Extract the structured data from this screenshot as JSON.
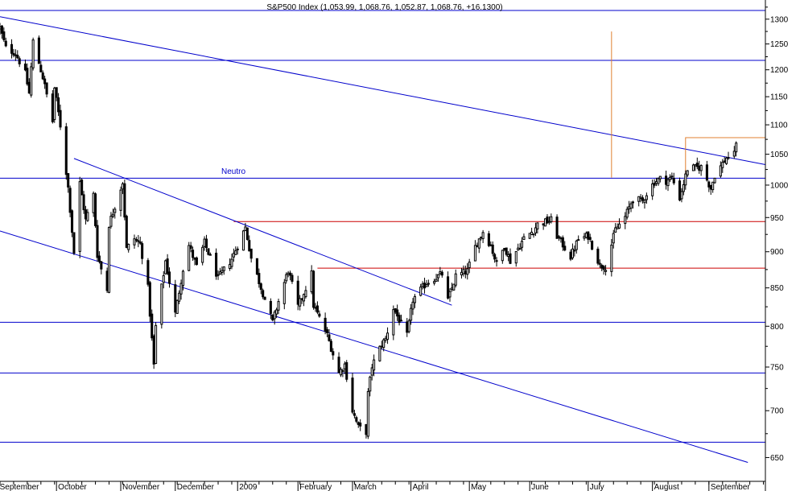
{
  "chart_data": {
    "type": "candlestick",
    "title": "S&P500 Index (1,053.99, 1,068.76, 1,052.87, 1,068.76, +16.1300)",
    "annotation": "Neutro",
    "y_scale": "log",
    "ylim": [
      626,
      1340
    ],
    "y_ticks": [
      650,
      700,
      750,
      800,
      850,
      900,
      950,
      1000,
      1050,
      1100,
      1150,
      1200,
      1250,
      1300
    ],
    "x_range": [
      "2008-09-02",
      "2009-09-30"
    ],
    "x_labels": [
      {
        "date": "2008-09-01",
        "label": "September"
      },
      {
        "date": "2008-10-01",
        "label": "October"
      },
      {
        "date": "2008-11-03",
        "label": "November"
      },
      {
        "date": "2008-12-01",
        "label": "December"
      },
      {
        "date": "2009-01-02",
        "label": "2009"
      },
      {
        "date": "2009-02-02",
        "label": "February"
      },
      {
        "date": "2009-03-02",
        "label": "March"
      },
      {
        "date": "2009-04-01",
        "label": "April"
      },
      {
        "date": "2009-05-01",
        "label": "May"
      },
      {
        "date": "2009-06-01",
        "label": "June"
      },
      {
        "date": "2009-07-01",
        "label": "July"
      },
      {
        "date": "2009-08-03",
        "label": "August"
      },
      {
        "date": "2009-09-01",
        "label": "September"
      }
    ],
    "horizontal_lines": [
      {
        "value": 1318,
        "color": "#0000cc"
      },
      {
        "value": 1218,
        "color": "#0000cc"
      },
      {
        "value": 1011,
        "color": "#0000cc"
      },
      {
        "value": 805,
        "color": "#0000cc"
      },
      {
        "value": 743,
        "color": "#0000cc"
      },
      {
        "value": 666,
        "color": "#0000cc"
      }
    ],
    "support_resistance_segments": [
      {
        "from_date": "2008-12-31",
        "to_date": "2009-09-30",
        "value": 944,
        "color": "#cc0000"
      },
      {
        "from_date": "2009-02-12",
        "to_date": "2009-09-30",
        "value": 877,
        "color": "#cc0000"
      }
    ],
    "trendlines": [
      {
        "from": [
          "2008-09-02",
          1305
        ],
        "to": [
          "2009-09-30",
          1033
        ],
        "color": "#0000cc"
      },
      {
        "from": [
          "2008-10-10",
          1043
        ],
        "to": [
          "2009-04-22",
          827
        ],
        "color": "#0000cc"
      },
      {
        "from": [
          "2008-09-02",
          930
        ],
        "to": [
          "2009-09-21",
          645
        ],
        "color": "#0000cc"
      }
    ],
    "target_marks": [
      {
        "type": "vertical",
        "date": "2009-07-13",
        "from": 1012,
        "to": 1275,
        "color": "#e08030"
      },
      {
        "type": "bracket",
        "from_date": "2009-08-20",
        "to_date": "2009-09-30",
        "from": 1000,
        "to": 1078,
        "color": "#e08030"
      }
    ],
    "colors": {
      "up": "#ffffff",
      "down": "#000000",
      "outline": "#000000",
      "grid": "#0000cc",
      "support": "#cc0000",
      "target": "#e08030"
    },
    "anchors": [
      [
        "2008-09-02",
        1282
      ],
      [
        "2008-09-05",
        1242
      ],
      [
        "2008-09-10",
        1232
      ],
      [
        "2008-09-15",
        1193
      ],
      [
        "2008-09-17",
        1156
      ],
      [
        "2008-09-19",
        1255
      ],
      [
        "2008-09-24",
        1186
      ],
      [
        "2008-09-29",
        1106
      ],
      [
        "2008-09-30",
        1166
      ],
      [
        "2008-10-03",
        1099
      ],
      [
        "2008-10-07",
        996
      ],
      [
        "2008-10-10",
        899
      ],
      [
        "2008-10-13",
        1003
      ],
      [
        "2008-10-16",
        946
      ],
      [
        "2008-10-20",
        985
      ],
      [
        "2008-10-22",
        896
      ],
      [
        "2008-10-24",
        876
      ],
      [
        "2008-10-27",
        848
      ],
      [
        "2008-10-28",
        940
      ],
      [
        "2008-11-04",
        1005
      ],
      [
        "2008-11-06",
        904
      ],
      [
        "2008-11-10",
        919
      ],
      [
        "2008-11-13",
        911
      ],
      [
        "2008-11-17",
        850
      ],
      [
        "2008-11-20",
        752
      ],
      [
        "2008-11-21",
        800
      ],
      [
        "2008-11-26",
        887
      ],
      [
        "2008-12-01",
        816
      ],
      [
        "2008-12-05",
        876
      ],
      [
        "2008-12-08",
        909
      ],
      [
        "2008-12-12",
        879
      ],
      [
        "2008-12-16",
        913
      ],
      [
        "2008-12-23",
        863
      ],
      [
        "2008-12-30",
        890
      ],
      [
        "2009-01-06",
        935
      ],
      [
        "2009-01-09",
        891
      ],
      [
        "2009-01-15",
        843
      ],
      [
        "2009-01-20",
        805
      ],
      [
        "2009-01-23",
        832
      ],
      [
        "2009-01-28",
        874
      ],
      [
        "2009-02-02",
        825
      ],
      [
        "2009-02-09",
        869
      ],
      [
        "2009-02-10",
        827
      ],
      [
        "2009-02-17",
        789
      ],
      [
        "2009-02-23",
        743
      ],
      [
        "2009-02-26",
        753
      ],
      [
        "2009-03-02",
        700
      ],
      [
        "2009-03-05",
        682
      ],
      [
        "2009-03-09",
        677
      ],
      [
        "2009-03-10",
        719
      ],
      [
        "2009-03-12",
        751
      ],
      [
        "2009-03-17",
        778
      ],
      [
        "2009-03-19",
        784
      ],
      [
        "2009-03-23",
        823
      ],
      [
        "2009-03-25",
        813
      ],
      [
        "2009-03-30",
        788
      ],
      [
        "2009-04-02",
        834
      ],
      [
        "2009-04-09",
        857
      ],
      [
        "2009-04-17",
        869
      ],
      [
        "2009-04-20",
        833
      ],
      [
        "2009-04-24",
        866
      ],
      [
        "2009-04-30",
        873
      ],
      [
        "2009-05-04",
        907
      ],
      [
        "2009-05-08",
        929
      ],
      [
        "2009-05-12",
        909
      ],
      [
        "2009-05-15",
        883
      ],
      [
        "2009-05-19",
        908
      ],
      [
        "2009-05-22",
        887
      ],
      [
        "2009-05-29",
        919
      ],
      [
        "2009-06-03",
        931
      ],
      [
        "2009-06-05",
        940
      ],
      [
        "2009-06-12",
        946
      ],
      [
        "2009-06-15",
        923
      ],
      [
        "2009-06-22",
        893
      ],
      [
        "2009-06-26",
        918
      ],
      [
        "2009-07-01",
        923
      ],
      [
        "2009-07-07",
        881
      ],
      [
        "2009-07-10",
        879
      ],
      [
        "2009-07-15",
        932
      ],
      [
        "2009-07-20",
        951
      ],
      [
        "2009-07-24",
        979
      ],
      [
        "2009-07-29",
        975
      ],
      [
        "2009-07-31",
        987
      ],
      [
        "2009-08-04",
        1005
      ],
      [
        "2009-08-07",
        1010
      ],
      [
        "2009-08-10",
        1007
      ],
      [
        "2009-08-13",
        1012
      ],
      [
        "2009-08-17",
        980
      ],
      [
        "2009-08-21",
        1026
      ],
      [
        "2009-08-28",
        1029
      ],
      [
        "2009-09-02",
        995
      ],
      [
        "2009-09-04",
        1016
      ],
      [
        "2009-09-10",
        1044
      ],
      [
        "2009-09-14",
        1049
      ],
      [
        "2009-09-15",
        1068.76
      ]
    ]
  }
}
